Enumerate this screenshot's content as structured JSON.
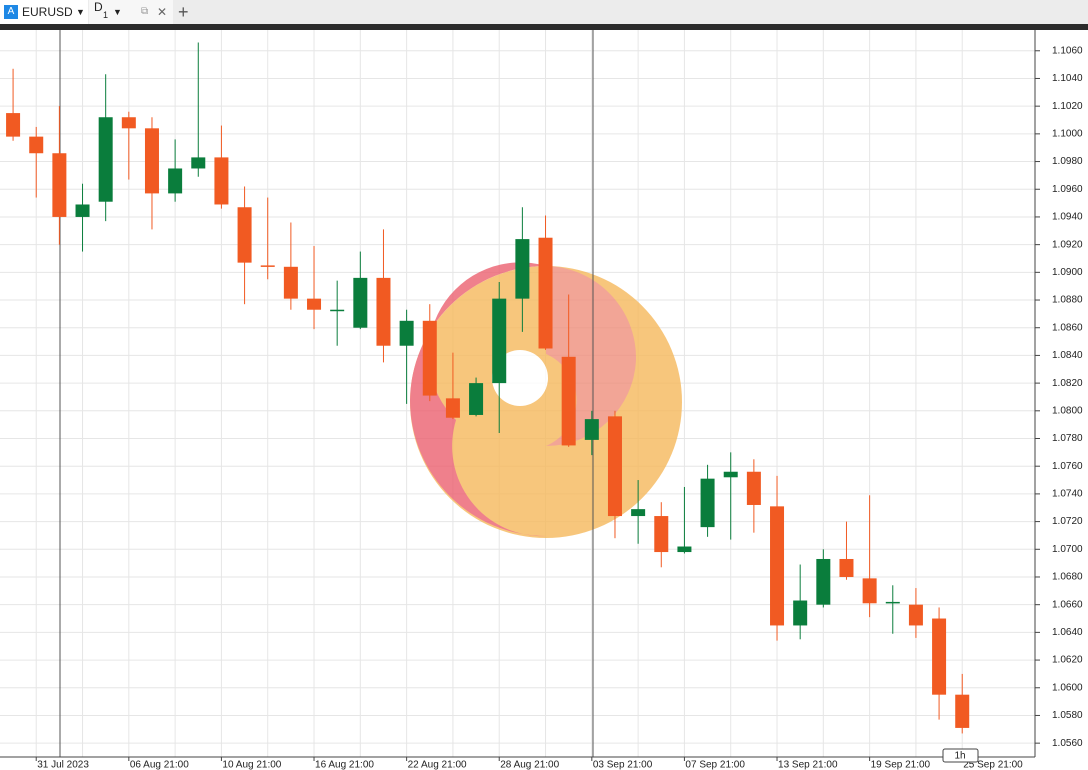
{
  "tabs": [
    {
      "label": "EURUSD"
    },
    {
      "label": "D",
      "sub": "1"
    }
  ],
  "badge": "1h",
  "chart_data": {
    "type": "candlestick",
    "categories": [
      null,
      "31 Jul 2023",
      null,
      null,
      null,
      "06 Aug 21:00",
      null,
      null,
      null,
      "10 Aug 21:00",
      null,
      null,
      null,
      "16 Aug 21:00",
      null,
      null,
      null,
      "22 Aug 21:00",
      null,
      null,
      null,
      "28 Aug 21:00",
      null,
      null,
      null,
      "03 Sep 21:00",
      null,
      null,
      null,
      "07 Sep 21:00",
      null,
      null,
      null,
      "13 Sep 21:00",
      null,
      null,
      null,
      "19 Sep 21:00",
      null,
      null,
      null,
      "25 Sep 21:00"
    ],
    "open": [
      1.1015,
      1.0998,
      1.0986,
      1.094,
      1.0951,
      1.1012,
      1.1004,
      1.0957,
      1.0975,
      1.0983,
      1.0947,
      1.0905,
      1.0904,
      1.0881,
      1.0872,
      1.086,
      1.0896,
      1.0847,
      1.0865,
      1.0809,
      1.0797,
      1.082,
      1.0881,
      1.0925,
      1.0839,
      1.0779,
      1.0796,
      1.0724,
      1.0724,
      1.0698,
      1.0716,
      1.0752,
      1.0756,
      1.0731,
      1.0645,
      1.066,
      1.0693,
      1.0679,
      1.0661,
      1.066,
      1.065,
      1.0595
    ],
    "high": [
      1.1047,
      1.1005,
      1.102,
      1.0964,
      1.1043,
      1.1016,
      1.1012,
      1.0996,
      1.1066,
      1.1006,
      1.0962,
      1.0954,
      1.0936,
      1.0919,
      1.0894,
      1.0915,
      1.0931,
      1.0873,
      1.0877,
      1.0842,
      1.0824,
      1.0893,
      1.0947,
      1.0941,
      1.0884,
      1.08,
      1.08,
      1.075,
      1.0734,
      1.0745,
      1.0761,
      1.077,
      1.0765,
      1.0753,
      1.0689,
      1.07,
      1.072,
      1.0739,
      1.0674,
      1.0672,
      1.0658,
      1.061
    ],
    "low": [
      1.0995,
      1.0954,
      1.092,
      1.0915,
      1.0937,
      1.0967,
      1.0931,
      1.0951,
      1.0969,
      1.0946,
      1.0877,
      1.0895,
      1.0873,
      1.0859,
      1.0847,
      1.0859,
      1.0835,
      1.0805,
      1.0807,
      1.0794,
      1.0796,
      1.0784,
      1.0857,
      1.0844,
      1.0774,
      1.0768,
      1.0708,
      1.0704,
      1.0687,
      1.0697,
      1.0709,
      1.0707,
      1.0712,
      1.0634,
      1.0635,
      1.0658,
      1.0678,
      1.0651,
      1.0639,
      1.0636,
      1.0577,
      1.0567
    ],
    "close": [
      1.0998,
      1.0986,
      1.094,
      1.0949,
      1.1012,
      1.1004,
      1.0957,
      1.0975,
      1.0983,
      1.0949,
      1.0907,
      1.0904,
      1.0881,
      1.0873,
      1.0873,
      1.0896,
      1.0847,
      1.0865,
      1.0811,
      1.0795,
      1.082,
      1.0881,
      1.0924,
      1.0845,
      1.0775,
      1.0794,
      1.0724,
      1.0729,
      1.0698,
      1.0702,
      1.0751,
      1.0756,
      1.0732,
      1.0645,
      1.0663,
      1.0693,
      1.068,
      1.0661,
      1.0662,
      1.0645,
      1.0595,
      1.0571
    ],
    "up_color": "#0a7d3c",
    "down_color": "#f15a22",
    "ylim": [
      1.055,
      1.1075
    ],
    "yticks": [
      {
        "value": 1.056,
        "label": "1.0560"
      },
      {
        "value": 1.058,
        "label": "1.0580"
      },
      {
        "value": 1.06,
        "label": "1.0600"
      },
      {
        "value": 1.062,
        "label": "1.0620"
      },
      {
        "value": 1.064,
        "label": "1.0640"
      },
      {
        "value": 1.066,
        "label": "1.0660"
      },
      {
        "value": 1.068,
        "label": "1.0680"
      },
      {
        "value": 1.07,
        "label": "1.0700"
      },
      {
        "value": 1.072,
        "label": "1.0720"
      },
      {
        "value": 1.074,
        "label": "1.0740"
      },
      {
        "value": 1.076,
        "label": "1.0760"
      },
      {
        "value": 1.078,
        "label": "1.0780"
      },
      {
        "value": 1.08,
        "label": "1.0800"
      },
      {
        "value": 1.082,
        "label": "1.0820"
      },
      {
        "value": 1.084,
        "label": "1.0840"
      },
      {
        "value": 1.086,
        "label": "1.0860"
      },
      {
        "value": 1.088,
        "label": "1.0880"
      },
      {
        "value": 1.09,
        "label": "1.0900"
      },
      {
        "value": 1.092,
        "label": "1.0920"
      },
      {
        "value": 1.094,
        "label": "1.0940"
      },
      {
        "value": 1.096,
        "label": "1.0960"
      },
      {
        "value": 1.098,
        "label": "1.0980"
      },
      {
        "value": 1.1,
        "label": "1.1000"
      },
      {
        "value": 1.102,
        "label": "1.1020"
      },
      {
        "value": 1.104,
        "label": "1.1040"
      },
      {
        "value": 1.106,
        "label": "1.1060"
      }
    ],
    "grid": true
  }
}
